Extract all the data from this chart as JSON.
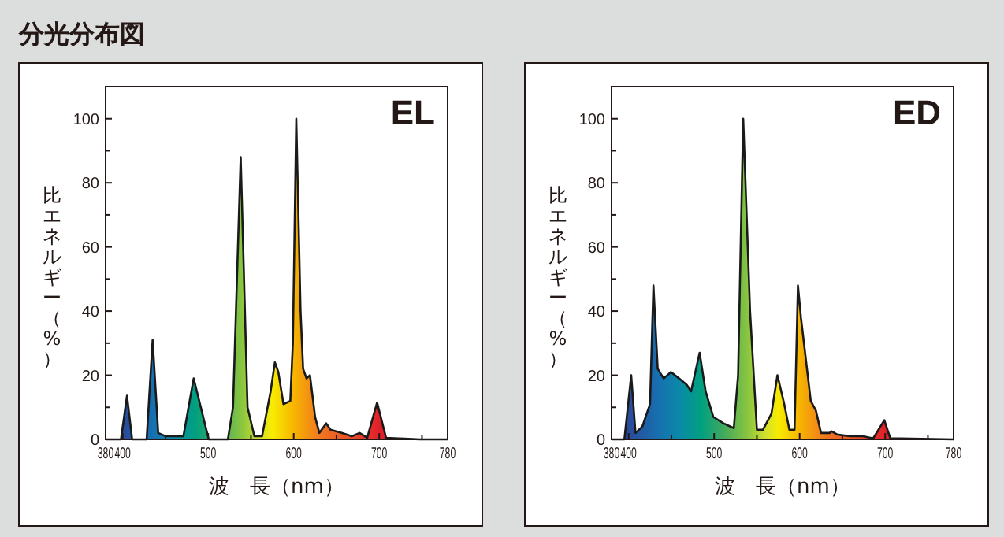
{
  "chart_data": [
    {
      "type": "area",
      "title": "分光分布図",
      "annotations": [
        "EL"
      ],
      "xlabel": "波　長（nm）",
      "ylabel": "比エネルギー（%）",
      "xlim": [
        380,
        780
      ],
      "ylim": [
        0,
        110
      ],
      "xticks": [
        380,
        400,
        {
          "value": 450,
          "label": null
        },
        500,
        {
          "value": 550,
          "label": null
        },
        600,
        {
          "value": 650,
          "label": null
        },
        700,
        {
          "value": 750,
          "label": null
        },
        780
      ],
      "yticks": [
        0,
        {
          "value": 10,
          "label": null
        },
        20,
        {
          "value": 30,
          "label": null
        },
        40,
        {
          "value": 50,
          "label": null
        },
        60,
        {
          "value": 70,
          "label": null
        },
        80,
        {
          "value": 90,
          "label": null
        },
        100
      ],
      "series": [
        {
          "color": "#1a1a1a",
          "x": [
            380,
            390,
            398,
            405,
            411,
            428,
            435,
            441.5,
            450,
            471,
            483,
            500.6,
            523,
            529,
            538,
            546,
            554,
            563,
            573,
            578,
            582,
            588,
            596,
            599,
            603,
            608,
            611,
            615,
            619,
            625,
            630,
            638,
            643,
            656,
            668,
            677,
            686,
            697.5,
            708,
            723,
            748,
            780
          ],
          "values": [
            0,
            0,
            0,
            13.6,
            0,
            0,
            31,
            2,
            1,
            1,
            19,
            0,
            0,
            10,
            88,
            10,
            1,
            1,
            15,
            24,
            21,
            11,
            12,
            30,
            100,
            40,
            22,
            19,
            20,
            7,
            2,
            5,
            3,
            2,
            1,
            2,
            0.5,
            11.5,
            0.5,
            0.3,
            0,
            0
          ]
        }
      ]
    },
    {
      "type": "area",
      "annotations": [
        "ED"
      ],
      "xlabel": "波　長（nm）",
      "ylabel": "比エネルギー（%）",
      "xlim": [
        380,
        780
      ],
      "ylim": [
        0,
        110
      ],
      "xticks": [
        380,
        400,
        {
          "value": 450,
          "label": null
        },
        500,
        {
          "value": 550,
          "label": null
        },
        600,
        {
          "value": 650,
          "label": null
        },
        700,
        {
          "value": 750,
          "label": null
        },
        780
      ],
      "yticks": [
        0,
        {
          "value": 10,
          "label": null
        },
        20,
        {
          "value": 30,
          "label": null
        },
        40,
        {
          "value": 50,
          "label": null
        },
        60,
        {
          "value": 70,
          "label": null
        },
        80,
        {
          "value": 90,
          "label": null
        },
        100
      ],
      "series": [
        {
          "color": "#1a1a1a",
          "x": [
            380,
            395,
            403,
            408,
            416,
            425,
            429,
            434,
            441,
            449.5,
            459,
            468,
            473,
            483,
            490,
            499,
            511,
            523,
            528,
            534,
            542,
            550,
            557,
            567,
            574,
            582,
            588,
            594,
            598,
            601.5,
            613,
            619,
            625,
            635,
            637.5,
            644,
            659,
            674,
            686,
            699,
            706,
            718,
            780
          ],
          "values": [
            0,
            0,
            20,
            2,
            4,
            11,
            48,
            22,
            19,
            21,
            19,
            17,
            15,
            27,
            15,
            7,
            5,
            3.5,
            20,
            100,
            40,
            3,
            3,
            8,
            20,
            11,
            3,
            3,
            48,
            38,
            12,
            9,
            2,
            2,
            2.5,
            1.5,
            1,
            1,
            0.3,
            6,
            0.3,
            0.3,
            0
          ]
        }
      ]
    }
  ]
}
